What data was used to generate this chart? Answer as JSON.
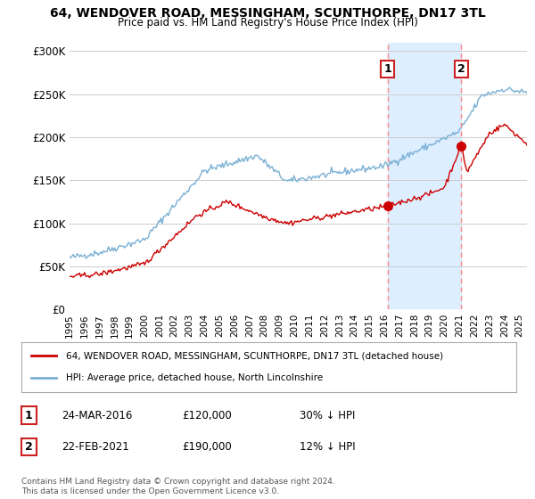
{
  "title": "64, WENDOVER ROAD, MESSINGHAM, SCUNTHORPE, DN17 3TL",
  "subtitle": "Price paid vs. HM Land Registry's House Price Index (HPI)",
  "ylabel_ticks": [
    "£0",
    "£50K",
    "£100K",
    "£150K",
    "£200K",
    "£250K",
    "£300K"
  ],
  "ytick_values": [
    0,
    50000,
    100000,
    150000,
    200000,
    250000,
    300000
  ],
  "ylim": [
    0,
    310000
  ],
  "xlim_start": 1995.0,
  "xlim_end": 2025.5,
  "sale1": {
    "date_num": 2016.21,
    "price": 120000,
    "label": "1",
    "date_str": "24-MAR-2016",
    "price_str": "£120,000",
    "pct": "30% ↓ HPI"
  },
  "sale2": {
    "date_num": 2021.12,
    "price": 190000,
    "label": "2",
    "date_str": "22-FEB-2021",
    "price_str": "£190,000",
    "pct": "12% ↓ HPI"
  },
  "legend_entry1": "64, WENDOVER ROAD, MESSINGHAM, SCUNTHORPE, DN17 3TL (detached house)",
  "legend_entry2": "HPI: Average price, detached house, North Lincolnshire",
  "footnote": "Contains HM Land Registry data © Crown copyright and database right 2024.\nThis data is licensed under the Open Government Licence v3.0.",
  "line_color_price": "#cc0000",
  "line_color_hpi": "#7ab0d4",
  "vline_color": "#ff8888",
  "shade_color": "#ddeeff",
  "background_color": "#ffffff",
  "grid_color": "#cccccc"
}
